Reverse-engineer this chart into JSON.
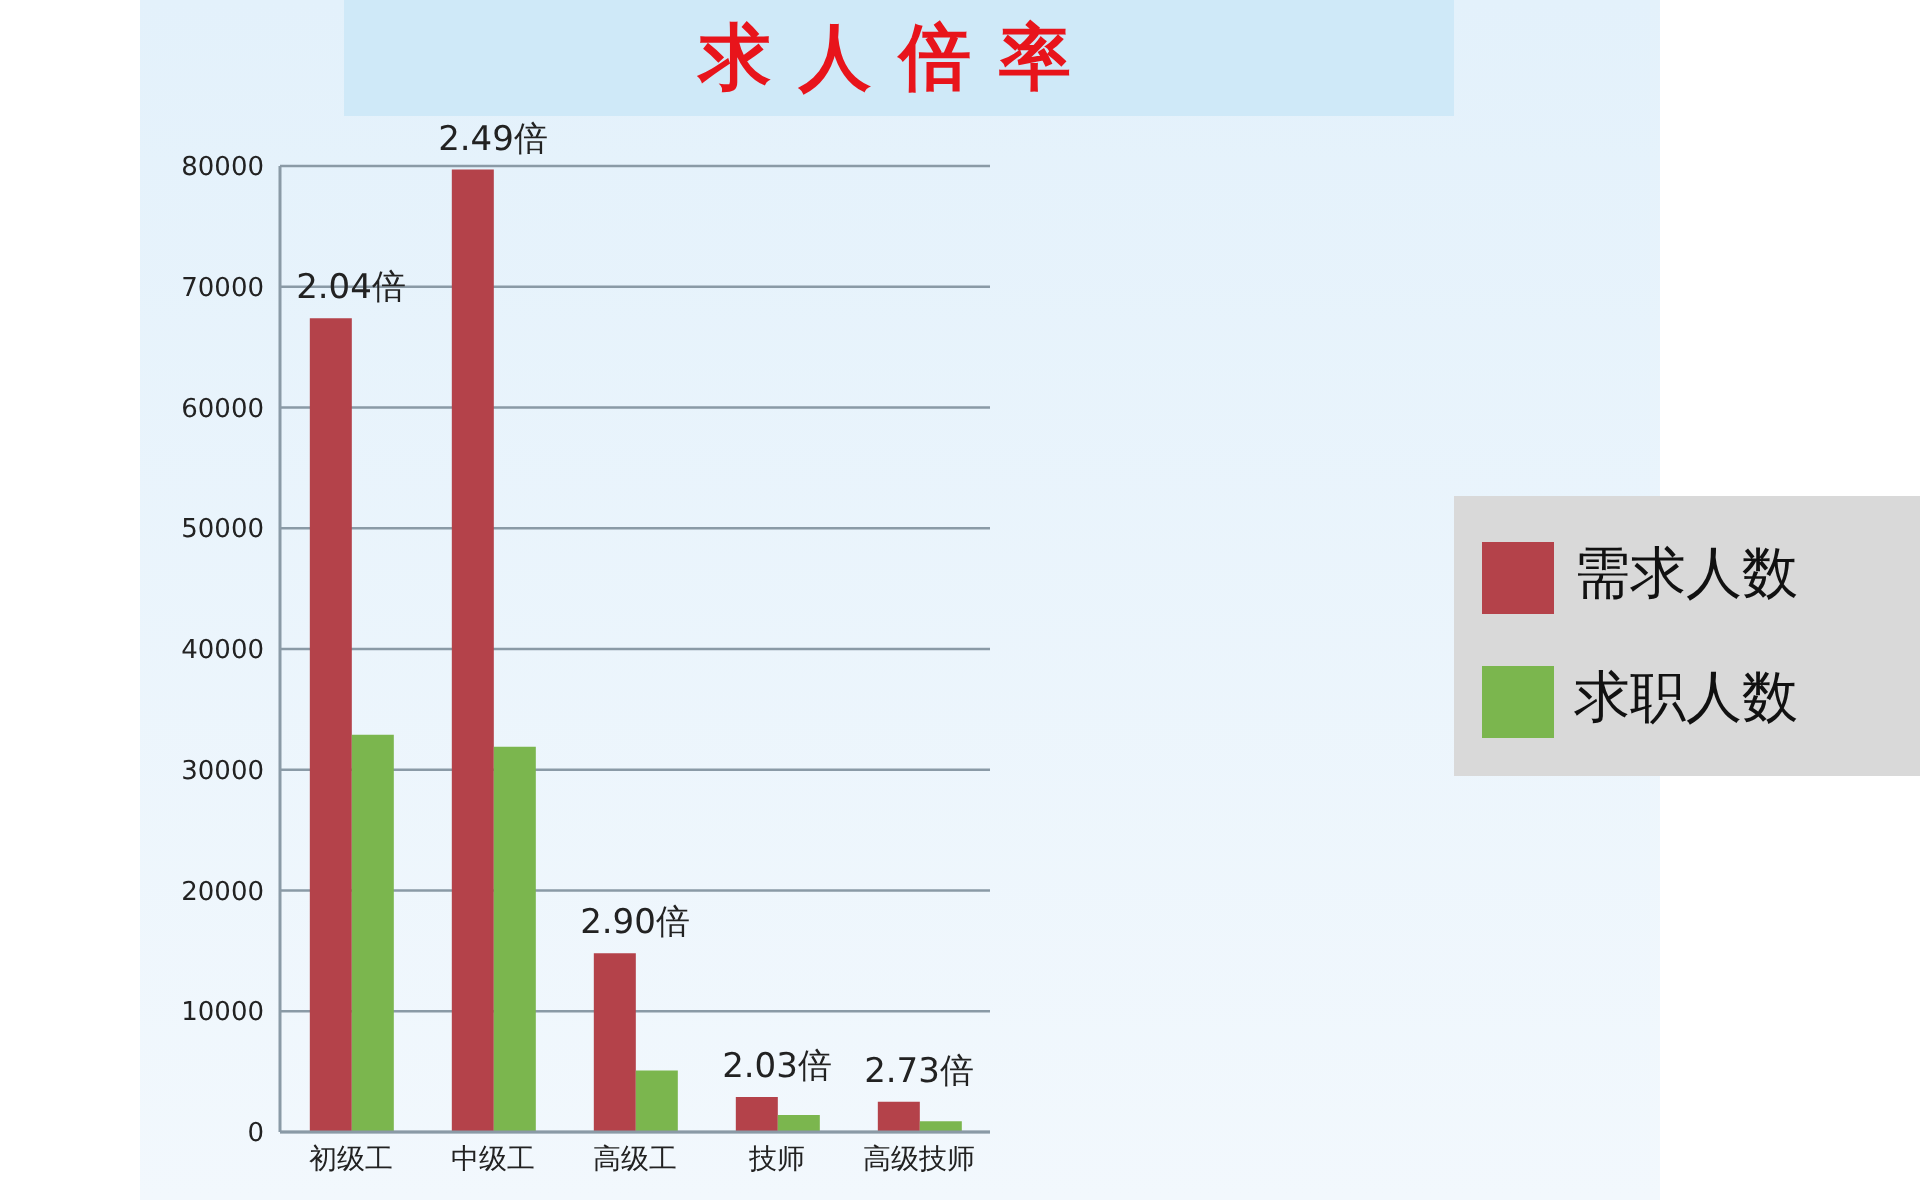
{
  "chart_data": {
    "type": "bar",
    "title": "求人倍率",
    "categories": [
      "初级工",
      "中级工",
      "高级工",
      "技师",
      "高级技师"
    ],
    "series": [
      {
        "name": "需求人数",
        "color": "#b4424a",
        "values": [
          67400,
          79700,
          14800,
          2900,
          2500
        ]
      },
      {
        "name": "求职人数",
        "color": "#7bb64e",
        "values": [
          32900,
          31900,
          5100,
          1400,
          900
        ]
      }
    ],
    "ylim": [
      0,
      80000
    ],
    "yticks": [
      0,
      10000,
      20000,
      30000,
      40000,
      50000,
      60000,
      70000,
      80000
    ],
    "grid": "y",
    "legend": "right",
    "annotations": [
      {
        "text": "2.04倍",
        "x": "初级工",
        "y": 67400
      },
      {
        "text": "2.49倍",
        "x": "中级工",
        "y": 79700
      },
      {
        "text": "2.90倍",
        "x": "高级工",
        "y": 14800
      },
      {
        "text": "2.03倍",
        "x": "技师",
        "y": 2900
      },
      {
        "text": "2.73倍",
        "x": "高级技师",
        "y": 2500
      }
    ]
  }
}
